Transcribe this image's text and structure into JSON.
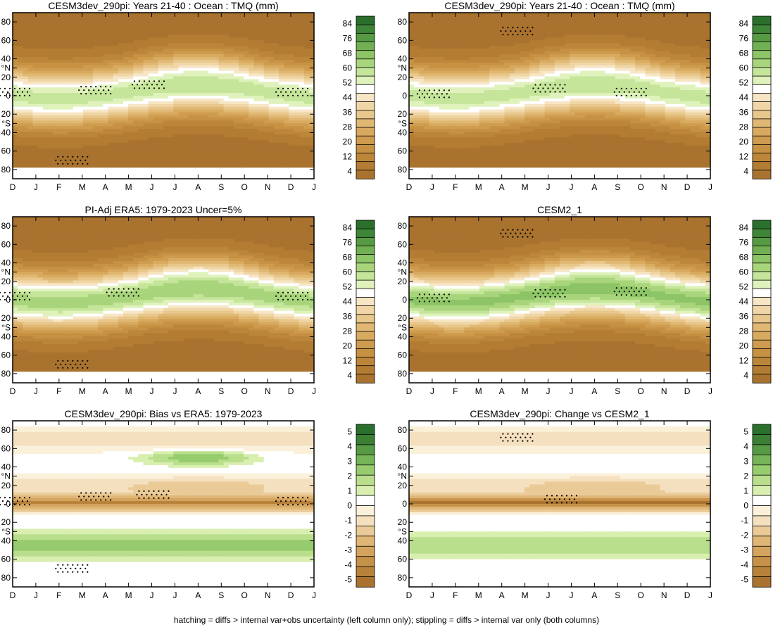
{
  "caption": "hatching = diffs > internal var+obs uncertainty (left column only); stippling = diffs > internal var only (both columns)",
  "colors": {
    "mean": [
      "#a9732f",
      "#b37c33",
      "#bc863a",
      "#c69142",
      "#cf9c4f",
      "#d8aa5f",
      "#e0b873",
      "#e8c78c",
      "#f0d6a6",
      "#f7e6c6",
      "#ffffff",
      "#e0f2bc",
      "#c5e59a",
      "#a8d57b",
      "#8cc466",
      "#70b052",
      "#569a43",
      "#3e8537",
      "#2a6f2c"
    ],
    "diff": [
      "#a9732f",
      "#b8823a",
      "#c6924a",
      "#d4a45e",
      "#e0b676",
      "#eacb98",
      "#f4e0bf",
      "#fbf0d9",
      "#ffffff",
      "#d9efb0",
      "#b9df8c",
      "#97cc6e",
      "#76b557",
      "#569a43",
      "#3b7f35",
      "#2a6f2c"
    ]
  },
  "chart_data": [
    {
      "type": "heatmap",
      "id": "mean_model_a",
      "title": "CESM3dev_290pi: Years 21-40 : Ocean : TMQ (mm)",
      "x": [
        "D",
        "J",
        "F",
        "M",
        "A",
        "M",
        "J",
        "J",
        "A",
        "S",
        "O",
        "N",
        "D",
        "J"
      ],
      "y_ticks": [
        "80",
        "60",
        "40",
        "°N",
        "20",
        "0",
        "20",
        "°S",
        "40",
        "60",
        "80"
      ],
      "y_tick_values": [
        80,
        60,
        40,
        30,
        20,
        0,
        -20,
        -30,
        -40,
        -60,
        -80
      ],
      "ylim": [
        -90,
        90
      ],
      "colorbar": [
        "84",
        "76",
        "68",
        "60",
        "52",
        "44",
        "36",
        "28",
        "20",
        "12",
        "4"
      ],
      "colorbar_values": [
        4,
        12,
        20,
        28,
        36,
        44,
        52,
        60,
        68,
        76,
        84
      ],
      "field": {
        "itcz_peak": 48,
        "itcz_shift_deg": 7,
        "pole_value": 2,
        "ice_mask": "south"
      },
      "masked_below_lat": -77,
      "dots": [
        [
          -0.5,
          4
        ],
        [
          11.5,
          4
        ],
        [
          3.0,
          6
        ],
        [
          5.3,
          12
        ],
        [
          2.0,
          -70
        ]
      ]
    },
    {
      "type": "heatmap",
      "id": "mean_model_b",
      "title": "CESM3dev_290pi: Years 21-40 : Ocean : TMQ (mm)",
      "x": [
        "D",
        "J",
        "F",
        "M",
        "A",
        "M",
        "J",
        "J",
        "A",
        "S",
        "O",
        "N",
        "D",
        "J"
      ],
      "y_ticks": [
        "80",
        "60",
        "40",
        "°N",
        "20",
        "0",
        "20",
        "°S",
        "40",
        "60",
        "80"
      ],
      "y_tick_values": [
        80,
        60,
        40,
        30,
        20,
        0,
        -20,
        -30,
        -40,
        -60,
        -80
      ],
      "ylim": [
        -90,
        90
      ],
      "colorbar": [
        "84",
        "76",
        "68",
        "60",
        "52",
        "44",
        "36",
        "28",
        "20",
        "12",
        "4"
      ],
      "colorbar_values": [
        4,
        12,
        20,
        28,
        36,
        44,
        52,
        60,
        68,
        76,
        84
      ],
      "field": {
        "itcz_peak": 48,
        "itcz_shift_deg": 7,
        "pole_value": 2,
        "ice_mask": "south"
      },
      "masked_below_lat": -77,
      "dots": [
        [
          0.5,
          2
        ],
        [
          5.5,
          8
        ],
        [
          9.0,
          4
        ],
        [
          4.1,
          70
        ]
      ]
    },
    {
      "type": "heatmap",
      "id": "mean_obs",
      "title": "PI-Adj ERA5: 1979-2023 Uncer=5%",
      "x": [
        "D",
        "J",
        "F",
        "M",
        "A",
        "M",
        "J",
        "J",
        "A",
        "S",
        "O",
        "N",
        "D",
        "J"
      ],
      "y_ticks": [
        "80",
        "60",
        "40",
        "°N",
        "20",
        "0",
        "20",
        "°S",
        "40",
        "60",
        "80"
      ],
      "y_tick_values": [
        80,
        60,
        40,
        30,
        20,
        0,
        -20,
        -30,
        -40,
        -60,
        -80
      ],
      "ylim": [
        -90,
        90
      ],
      "colorbar": [
        "84",
        "76",
        "68",
        "60",
        "52",
        "44",
        "36",
        "28",
        "20",
        "12",
        "4"
      ],
      "colorbar_values": [
        4,
        12,
        20,
        28,
        36,
        44,
        52,
        60,
        68,
        76,
        84
      ],
      "field": {
        "itcz_peak": 52,
        "itcz_shift_deg": 7,
        "pole_value": 2,
        "ice_mask": "south"
      },
      "masked_below_lat": -77,
      "dots": [
        [
          -0.5,
          4
        ],
        [
          11.5,
          4
        ],
        [
          4.2,
          8
        ],
        [
          2.0,
          -70
        ]
      ]
    },
    {
      "type": "heatmap",
      "id": "mean_cesm2",
      "title": "CESM2_1",
      "x": [
        "D",
        "J",
        "F",
        "M",
        "A",
        "M",
        "J",
        "J",
        "A",
        "S",
        "O",
        "N",
        "D",
        "J"
      ],
      "y_ticks": [
        "80",
        "60",
        "40",
        "°N",
        "20",
        "0",
        "20",
        "°S",
        "40",
        "60",
        "80"
      ],
      "y_tick_values": [
        80,
        60,
        40,
        30,
        20,
        0,
        -20,
        -30,
        -40,
        -60,
        -80
      ],
      "ylim": [
        -90,
        90
      ],
      "colorbar": [
        "84",
        "76",
        "68",
        "60",
        "52",
        "44",
        "36",
        "28",
        "20",
        "12",
        "4"
      ],
      "colorbar_values": [
        4,
        12,
        20,
        28,
        36,
        44,
        52,
        60,
        68,
        76,
        84
      ],
      "field": {
        "itcz_peak": 55,
        "itcz_shift_deg": 7,
        "pole_value": 2,
        "ice_mask": "south"
      },
      "masked_below_lat": -77,
      "dots": [
        [
          0.5,
          2
        ],
        [
          5.5,
          7
        ],
        [
          9.0,
          9
        ],
        [
          4.1,
          72
        ]
      ]
    },
    {
      "type": "heatmap",
      "id": "bias_vs_obs",
      "title": "CESM3dev_290pi: Bias vs ERA5: 1979-2023",
      "x": [
        "D",
        "J",
        "F",
        "M",
        "A",
        "M",
        "J",
        "J",
        "A",
        "S",
        "O",
        "N",
        "D",
        "J"
      ],
      "y_ticks": [
        "80",
        "60",
        "40",
        "°N",
        "20",
        "0",
        "20",
        "°S",
        "40",
        "60",
        "80"
      ],
      "y_tick_values": [
        80,
        60,
        40,
        30,
        20,
        0,
        -20,
        -30,
        -40,
        -60,
        -80
      ],
      "ylim": [
        -90,
        90
      ],
      "colorbar": [
        "5",
        "4",
        "3",
        "2",
        "1",
        "0",
        "-1",
        "-2",
        "-3",
        "-4",
        "-5"
      ],
      "colorbar_values": [
        -5,
        -4,
        -3,
        -2,
        -1,
        0,
        1,
        2,
        3,
        4,
        5
      ],
      "field": {
        "itcz_anomaly": -4.5,
        "nh_positive": 1.6,
        "sh_positive": 1.4
      },
      "dots": [
        [
          -0.5,
          3
        ],
        [
          11.5,
          3
        ],
        [
          3.0,
          8
        ],
        [
          5.5,
          10
        ],
        [
          2.0,
          -70
        ]
      ]
    },
    {
      "type": "heatmap",
      "id": "change_vs_cesm2",
      "title": "CESM3dev_290pi: Change vs CESM2_1",
      "x": [
        "D",
        "J",
        "F",
        "M",
        "A",
        "M",
        "J",
        "J",
        "A",
        "S",
        "O",
        "N",
        "D",
        "J"
      ],
      "y_ticks": [
        "80",
        "60",
        "40",
        "°N",
        "20",
        "0",
        "20",
        "°S",
        "40",
        "60",
        "80"
      ],
      "y_tick_values": [
        80,
        60,
        40,
        30,
        20,
        0,
        -20,
        -30,
        -40,
        -60,
        -80
      ],
      "ylim": [
        -90,
        90
      ],
      "colorbar": [
        "5",
        "4",
        "3",
        "2",
        "1",
        "0",
        "-1",
        "-2",
        "-3",
        "-4",
        "-5"
      ],
      "colorbar_values": [
        -5,
        -4,
        -3,
        -2,
        -1,
        0,
        1,
        2,
        3,
        4,
        5
      ],
      "field": {
        "itcz_anomaly": -5.0,
        "nh_positive": 0,
        "sh_positive": 0.9
      },
      "dots": [
        [
          6.0,
          5
        ],
        [
          4.1,
          72
        ]
      ]
    }
  ]
}
